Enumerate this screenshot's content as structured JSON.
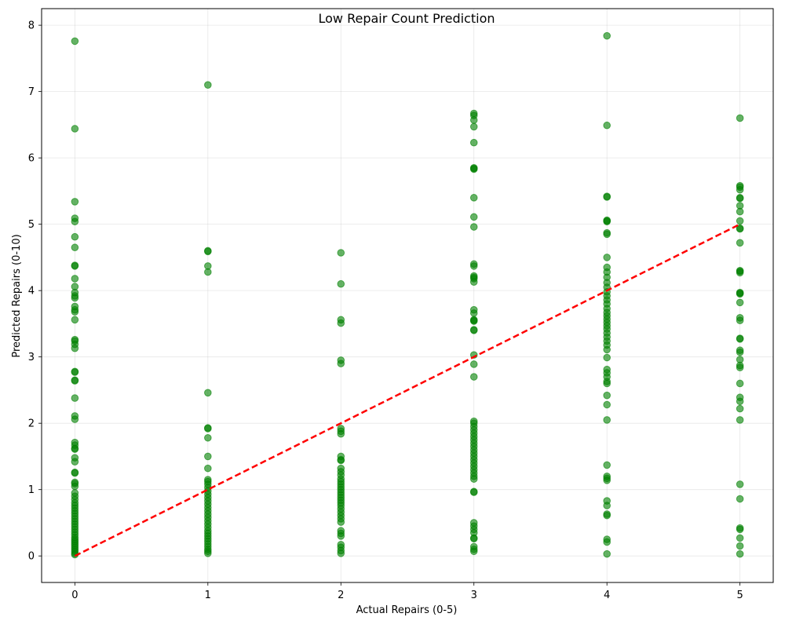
{
  "chart_data": {
    "type": "scatter",
    "title": "Low Repair Count Prediction",
    "xlabel": "Actual Repairs (0-5)",
    "ylabel": "Predicted Repairs (0-10)",
    "xlim": [
      -0.25,
      5.25
    ],
    "ylim": [
      -0.4,
      8.25
    ],
    "xticks": [
      "0",
      "1",
      "2",
      "3",
      "4",
      "5"
    ],
    "yticks": [
      "0",
      "1",
      "2",
      "3",
      "4",
      "5",
      "6",
      "7",
      "8"
    ],
    "grid": true,
    "point_color": "#008000",
    "reference_line": {
      "x": [
        0,
        5
      ],
      "y": [
        0,
        5
      ],
      "color": "#ff0000",
      "style": "dashed"
    },
    "series": [
      {
        "x": 0,
        "y": [
          7.76,
          6.44,
          5.34,
          5.09,
          5.04,
          4.81,
          4.65,
          4.38,
          4.37,
          4.18,
          4.06,
          3.97,
          3.92,
          3.89,
          3.76,
          3.71,
          3.68,
          3.56,
          3.26,
          3.24,
          3.19,
          3.13,
          2.78,
          2.77,
          2.65,
          2.64,
          2.38,
          2.11,
          2.06,
          1.71,
          1.67,
          1.62,
          1.61,
          1.48,
          1.42,
          1.26,
          1.25,
          1.11,
          1.09,
          1.05,
          0.95,
          0.9,
          0.85,
          0.8,
          0.76,
          0.72,
          0.68,
          0.64,
          0.6,
          0.56,
          0.52,
          0.48,
          0.44,
          0.4,
          0.36,
          0.32,
          0.28,
          0.25,
          0.22,
          0.19,
          0.16,
          0.13,
          0.1,
          0.07,
          0.04,
          0.02
        ]
      },
      {
        "x": 1,
        "y": [
          7.1,
          4.6,
          4.59,
          4.37,
          4.28,
          2.46,
          1.93,
          1.92,
          1.78,
          1.5,
          1.32,
          1.15,
          1.12,
          1.08,
          1.03,
          0.98,
          0.93,
          0.88,
          0.83,
          0.78,
          0.73,
          0.68,
          0.63,
          0.58,
          0.53,
          0.48,
          0.43,
          0.38,
          0.34,
          0.3,
          0.26,
          0.22,
          0.18,
          0.14,
          0.1,
          0.07,
          0.04
        ]
      },
      {
        "x": 2,
        "y": [
          4.57,
          4.1,
          3.56,
          3.51,
          2.95,
          2.9,
          1.92,
          1.88,
          1.84,
          1.5,
          1.45,
          1.44,
          1.32,
          1.27,
          1.22,
          1.16,
          1.12,
          1.08,
          1.04,
          1.0,
          0.96,
          0.92,
          0.88,
          0.84,
          0.8,
          0.76,
          0.71,
          0.66,
          0.61,
          0.56,
          0.51,
          0.38,
          0.34,
          0.3,
          0.17,
          0.13,
          0.08,
          0.04
        ]
      },
      {
        "x": 3,
        "y": [
          6.67,
          6.64,
          6.57,
          6.47,
          6.23,
          5.85,
          5.84,
          5.83,
          5.4,
          5.11,
          4.96,
          4.4,
          4.37,
          4.22,
          4.2,
          4.18,
          4.13,
          3.71,
          3.66,
          3.56,
          3.55,
          3.54,
          3.41,
          3.4,
          3.03,
          2.89,
          2.7,
          2.03,
          2.0,
          1.95,
          1.9,
          1.85,
          1.8,
          1.75,
          1.7,
          1.65,
          1.6,
          1.55,
          1.5,
          1.45,
          1.4,
          1.35,
          1.3,
          1.25,
          1.2,
          1.16,
          0.97,
          0.96,
          0.5,
          0.45,
          0.4,
          0.35,
          0.27,
          0.26,
          0.14,
          0.1,
          0.07
        ]
      },
      {
        "x": 4,
        "y": [
          7.84,
          6.49,
          5.42,
          5.41,
          5.06,
          5.05,
          5.04,
          4.87,
          4.85,
          4.5,
          4.35,
          4.28,
          4.2,
          4.12,
          4.05,
          3.98,
          3.92,
          3.86,
          3.8,
          3.73,
          3.67,
          3.62,
          3.57,
          3.52,
          3.47,
          3.42,
          3.36,
          3.3,
          3.24,
          3.18,
          3.11,
          2.99,
          2.81,
          2.76,
          2.7,
          2.63,
          2.6,
          2.42,
          2.28,
          2.05,
          1.37,
          1.2,
          1.17,
          1.14,
          0.83,
          0.76,
          0.63,
          0.61,
          0.25,
          0.21,
          0.03
        ]
      },
      {
        "x": 5,
        "y": [
          6.6,
          5.58,
          5.56,
          5.52,
          5.4,
          5.39,
          5.28,
          5.19,
          5.05,
          4.94,
          4.93,
          4.72,
          4.3,
          4.29,
          4.27,
          3.97,
          3.96,
          3.95,
          3.82,
          3.59,
          3.55,
          3.28,
          3.27,
          3.1,
          3.07,
          2.96,
          2.87,
          2.84,
          2.6,
          2.39,
          2.33,
          2.22,
          2.05,
          1.08,
          0.86,
          0.42,
          0.4,
          0.27,
          0.15,
          0.03
        ]
      }
    ]
  }
}
